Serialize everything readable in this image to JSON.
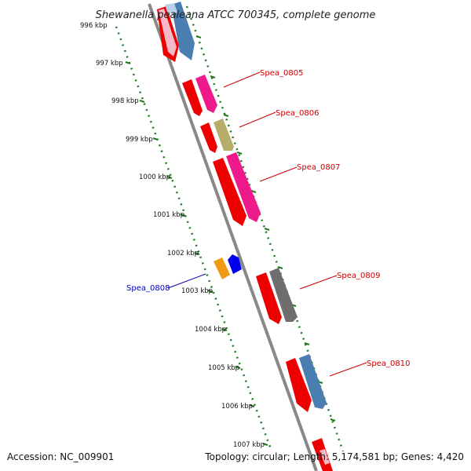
{
  "title": "Shewanella pealeana ATCC 700345, complete genome",
  "footer": {
    "accession": "Accession: NC_009901",
    "summary": "Topology: circular; Length: 5,174,581 bp; Genes: 4,420"
  },
  "ticks": [
    "996 kbp",
    "997 kbp",
    "998 kbp",
    "999 kbp",
    "1000 kbp",
    "1001 kbp",
    "1002 kbp",
    "1003 kbp",
    "1004 kbp",
    "1005 kbp",
    "1006 kbp",
    "1007 kbp"
  ],
  "gene_labels": {
    "spea_0805": "Spea_0805",
    "spea_0806": "Spea_0806",
    "spea_0807": "Spea_0807",
    "spea_0808": "Spea_0808",
    "spea_0809": "Spea_0809",
    "spea_0810": "Spea_0810"
  },
  "colors": {
    "backbone": "#8a8a8a",
    "inner_ring": "#1f7a1f",
    "outer_ring": "#1f7a1f",
    "forward_label": "#cc0000",
    "reverse_label": "#0000bb",
    "cds_red": "#ee0000",
    "pink": "#ee1a8c",
    "steel_blue": "#4a7db0",
    "light_blue": "#b8d0ea",
    "olive": "#b7ad6a",
    "dark_gray": "#6e6e6e",
    "orange": "#f29b12",
    "blue": "#0000ee",
    "light_pink": "#f7b8c8"
  }
}
